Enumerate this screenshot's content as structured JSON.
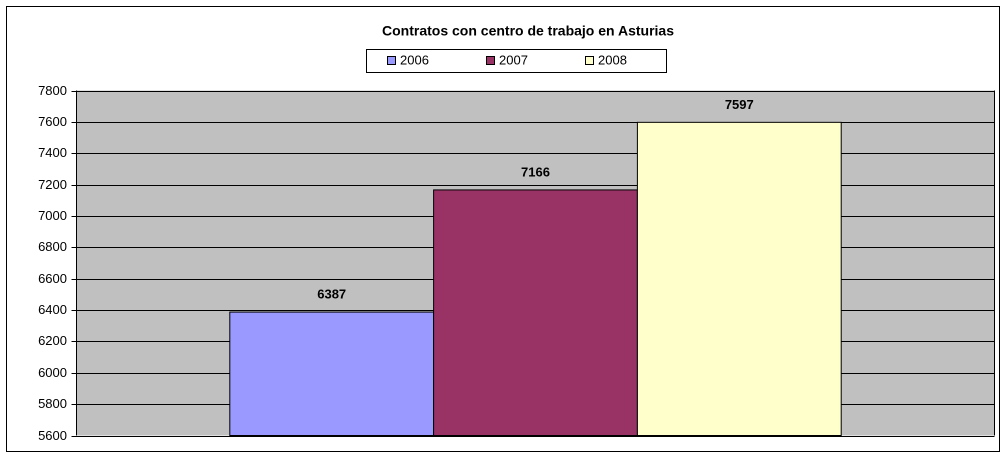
{
  "chart_data": {
    "type": "bar",
    "title": "Contratos con centro de trabajo en Asturias",
    "categories": [
      null
    ],
    "series": [
      {
        "name": "2006",
        "color": "#9999FF",
        "values": [
          6387
        ]
      },
      {
        "name": "2007",
        "color": "#993366",
        "values": [
          7166
        ]
      },
      {
        "name": "2008",
        "color": "#FFFFCC",
        "values": [
          7597
        ]
      }
    ],
    "ylim": [
      5600,
      7800
    ],
    "yticks": [
      5600,
      5800,
      6000,
      6200,
      6400,
      6600,
      6800,
      7000,
      7200,
      7400,
      7600,
      7800
    ],
    "grid": true,
    "legend": "top"
  }
}
